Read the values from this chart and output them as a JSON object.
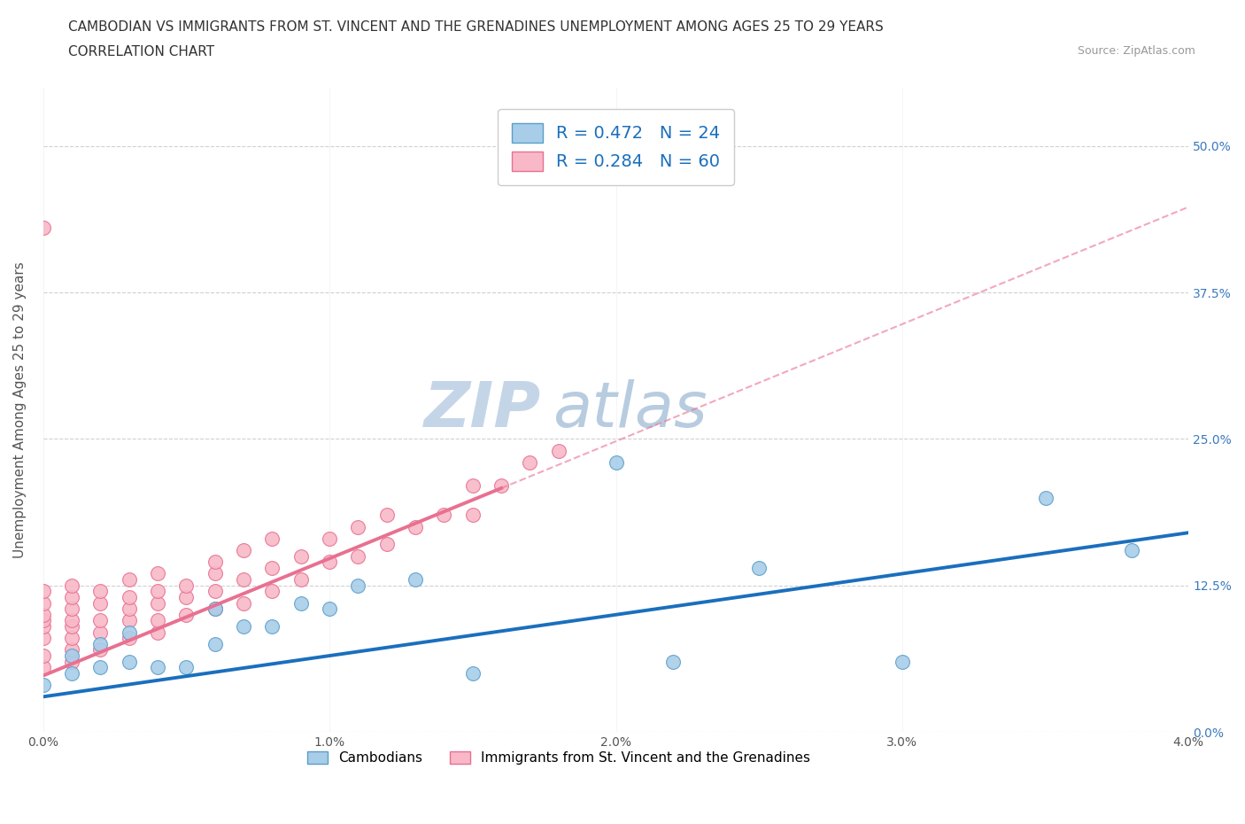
{
  "title_line1": "CAMBODIAN VS IMMIGRANTS FROM ST. VINCENT AND THE GRENADINES UNEMPLOYMENT AMONG AGES 25 TO 29 YEARS",
  "title_line2": "CORRELATION CHART",
  "source_text": "Source: ZipAtlas.com",
  "xlabel": "",
  "ylabel": "Unemployment Among Ages 25 to 29 years",
  "xlim": [
    0.0,
    0.04
  ],
  "ylim": [
    0.0,
    0.55
  ],
  "xticks": [
    0.0,
    0.01,
    0.02,
    0.03,
    0.04
  ],
  "xticklabels": [
    "0.0%",
    "1.0%",
    "2.0%",
    "3.0%",
    "4.0%"
  ],
  "yticks": [
    0.0,
    0.125,
    0.25,
    0.375,
    0.5
  ],
  "right_yticklabels": [
    "0.0%",
    "12.5%",
    "25.0%",
    "37.5%",
    "50.0%"
  ],
  "grid_color": "#d0d0d0",
  "watermark_text": "ZIP",
  "watermark_text2": "atlas",
  "cambodian_color": "#a8cde8",
  "cambodian_edge": "#5b9ec9",
  "vincent_color": "#f8b8c8",
  "vincent_edge": "#e87090",
  "cambodian_R": 0.472,
  "cambodian_N": 24,
  "vincent_R": 0.284,
  "vincent_N": 60,
  "legend_color": "#1a6fbd",
  "cambodian_line_color": "#1a6fbd",
  "vincent_line_color": "#e87090",
  "cambodian_line_solid_end": 0.04,
  "vincent_line_solid_end": 0.016,
  "title_fontsize": 11,
  "subtitle_fontsize": 11,
  "axis_label_fontsize": 11,
  "tick_fontsize": 10,
  "legend_fontsize": 14,
  "watermark_fontsize_zip": 52,
  "watermark_fontsize_atlas": 52,
  "watermark_color_zip": "#c5d5e8",
  "watermark_color_atlas": "#b8cce0",
  "background_color": "#ffffff",
  "cambodian_scatter_x": [
    0.0,
    0.001,
    0.001,
    0.002,
    0.002,
    0.003,
    0.003,
    0.004,
    0.005,
    0.006,
    0.006,
    0.007,
    0.008,
    0.009,
    0.01,
    0.011,
    0.013,
    0.015,
    0.02,
    0.022,
    0.025,
    0.03,
    0.035,
    0.038
  ],
  "cambodian_scatter_y": [
    0.04,
    0.05,
    0.065,
    0.055,
    0.075,
    0.06,
    0.085,
    0.055,
    0.055,
    0.075,
    0.105,
    0.09,
    0.09,
    0.11,
    0.105,
    0.125,
    0.13,
    0.05,
    0.23,
    0.06,
    0.14,
    0.06,
    0.2,
    0.155
  ],
  "vincent_scatter_x": [
    0.0,
    0.0,
    0.0,
    0.0,
    0.0,
    0.0,
    0.0,
    0.0,
    0.001,
    0.001,
    0.001,
    0.001,
    0.001,
    0.001,
    0.001,
    0.001,
    0.002,
    0.002,
    0.002,
    0.002,
    0.002,
    0.003,
    0.003,
    0.003,
    0.003,
    0.003,
    0.004,
    0.004,
    0.004,
    0.004,
    0.004,
    0.005,
    0.005,
    0.005,
    0.006,
    0.006,
    0.006,
    0.006,
    0.007,
    0.007,
    0.007,
    0.008,
    0.008,
    0.008,
    0.009,
    0.009,
    0.01,
    0.01,
    0.011,
    0.011,
    0.012,
    0.012,
    0.013,
    0.014,
    0.015,
    0.015,
    0.016,
    0.017,
    0.018,
    0.0
  ],
  "vincent_scatter_y": [
    0.055,
    0.065,
    0.08,
    0.09,
    0.095,
    0.1,
    0.11,
    0.12,
    0.06,
    0.07,
    0.08,
    0.09,
    0.095,
    0.105,
    0.115,
    0.125,
    0.07,
    0.085,
    0.095,
    0.11,
    0.12,
    0.08,
    0.095,
    0.105,
    0.115,
    0.13,
    0.085,
    0.095,
    0.11,
    0.12,
    0.135,
    0.1,
    0.115,
    0.125,
    0.105,
    0.12,
    0.135,
    0.145,
    0.11,
    0.13,
    0.155,
    0.12,
    0.14,
    0.165,
    0.13,
    0.15,
    0.145,
    0.165,
    0.15,
    0.175,
    0.16,
    0.185,
    0.175,
    0.185,
    0.185,
    0.21,
    0.21,
    0.23,
    0.24,
    0.43
  ],
  "camb_line_intercept": 0.03,
  "camb_line_slope": 3.5,
  "vinc_line_intercept": 0.048,
  "vinc_line_slope": 10.0
}
